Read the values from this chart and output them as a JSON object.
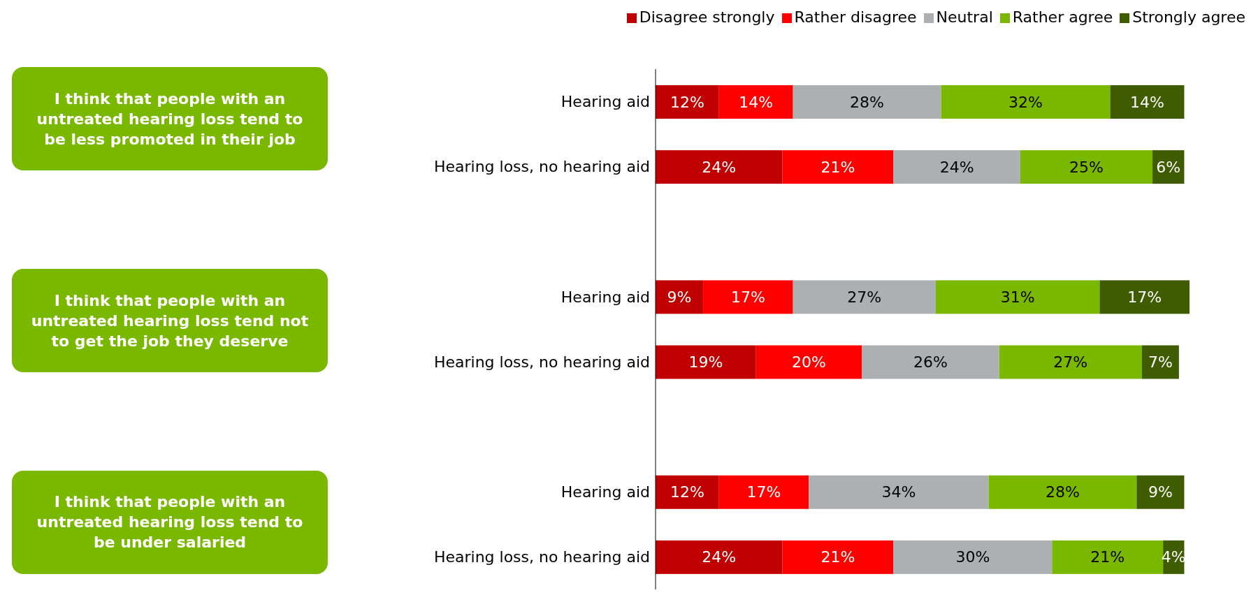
{
  "chart_data": {
    "type": "bar",
    "orientation": "horizontal",
    "stacked": true,
    "legend": "top right",
    "grid": false,
    "categories": [
      "Hearing aid",
      "Hearing loss, no hearing aid",
      null,
      "Hearing aid",
      "Hearing loss, no hearing aid",
      null,
      "Hearing aid",
      "Hearing loss, no hearing aid"
    ],
    "series": [
      {
        "name": "Disagree strongly",
        "color": "#c00000",
        "values": [
          12,
          24,
          null,
          9,
          19,
          null,
          12,
          24
        ],
        "value_labels": [
          "12%",
          "24%",
          null,
          "9%",
          "19%",
          null,
          "12%",
          "24%"
        ]
      },
      {
        "name": "Rather disagree",
        "color": "#ff0000",
        "values": [
          14,
          21,
          null,
          17,
          20,
          null,
          17,
          21
        ],
        "value_labels": [
          "14%",
          "21%",
          null,
          "17%",
          "20%",
          null,
          "17%",
          "21%"
        ]
      },
      {
        "name": "Neutral",
        "color": "#acb0b3",
        "values": [
          28,
          24,
          null,
          27,
          26,
          null,
          34,
          30
        ],
        "value_labels": [
          "28%",
          "24%",
          null,
          "27%",
          "26%",
          null,
          "34%",
          "30%"
        ]
      },
      {
        "name": "Rather agree",
        "color": "#7ab800",
        "values": [
          32,
          25,
          null,
          31,
          27,
          null,
          28,
          21
        ],
        "value_labels": [
          "32%",
          "25%",
          null,
          "31%",
          "27%",
          null,
          "28%",
          "21%"
        ]
      },
      {
        "name": "Strongly agree",
        "color": "#3f5c00",
        "values": [
          14,
          6,
          null,
          17,
          7,
          null,
          9,
          4
        ],
        "value_labels": [
          "14%",
          "6%",
          null,
          "17%",
          "7%",
          null,
          "9%",
          "4%"
        ]
      }
    ],
    "annotations": [
      "I think that people with an untreated hearing loss tend to be less promoted in their job",
      "I think that people with an untreated hearing loss tend not to get the job they deserve",
      "I think that people with an untreated hearing loss tend to be under salaried"
    ]
  }
}
